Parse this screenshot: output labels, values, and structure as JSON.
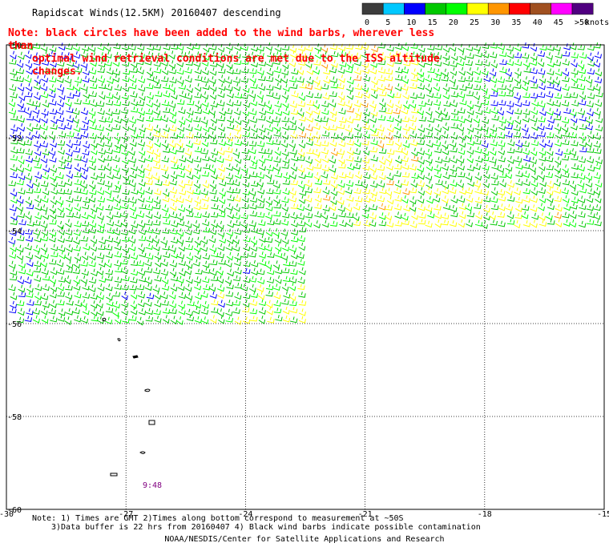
{
  "title": "Rapidscat Winds(12.5KM) 20160407 descending",
  "note": {
    "line1": "Note: black circles have been added to the wind barbs, wherever less than",
    "line2": "optimal wind retrieval conditions are met due to the ISS altitude changes."
  },
  "legend": {
    "unit": "knots",
    "bins": [
      {
        "label": "0",
        "color": "#3c3c3c"
      },
      {
        "label": "5",
        "color": "#00c8ff"
      },
      {
        "label": "10",
        "color": "#0000ff"
      },
      {
        "label": "15",
        "color": "#00c800"
      },
      {
        "label": "20",
        "color": "#00ff00"
      },
      {
        "label": "25",
        "color": "#ffff00"
      },
      {
        "label": "30",
        "color": "#ff9600"
      },
      {
        "label": "35",
        "color": "#ff0000"
      },
      {
        "label": "40",
        "color": "#a05020"
      },
      {
        "label": "45",
        "color": "#ff00ff"
      },
      {
        "label": ">50",
        "color": "#500080"
      }
    ]
  },
  "axes": {
    "x_ticks": [
      "-30",
      "-27",
      "-24",
      "-21",
      "-18",
      "-15"
    ],
    "y_ticks": [
      "-50",
      "-52",
      "-54",
      "-56",
      "-58",
      "-60"
    ],
    "lon_range": [
      -30,
      -15
    ],
    "lat_range": [
      -60,
      -50
    ]
  },
  "time_label": "9:48",
  "footer": {
    "line1": "Note: 1) Times are GMT 2)Times along bottom correspond to measurement at ~50S",
    "line2": "3)Data buffer is 22 hrs from 20160407 4) Black wind barbs indicate possible contamination",
    "credit": "NOAA/NESDIS/Center for Satellite Applications and Research"
  },
  "swath": {
    "description_colors": [
      "#0000ff",
      "#00c800",
      "#00ff00",
      "#ffff00",
      "#ff9600"
    ]
  }
}
